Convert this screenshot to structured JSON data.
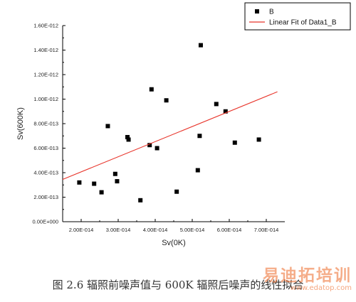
{
  "chart_data": {
    "type": "scatter",
    "title": "",
    "xlabel": "Sv(0K)",
    "ylabel": "Sv(600K)",
    "xlim": [
      1.5e-14,
      7.5e-14
    ],
    "ylim": [
      0,
      1.6e-12
    ],
    "x_ticks": [
      {
        "value": 2e-14,
        "label": "2.00E-014"
      },
      {
        "value": 3e-14,
        "label": "3.00E-014"
      },
      {
        "value": 4e-14,
        "label": "4.00E-014"
      },
      {
        "value": 5e-14,
        "label": "5.00E-014"
      },
      {
        "value": 6e-14,
        "label": "6.00E-014"
      },
      {
        "value": 7e-14,
        "label": "7.00E-014"
      }
    ],
    "y_ticks": [
      {
        "value": 0,
        "label": "0.00E+000"
      },
      {
        "value": 2e-13,
        "label": "2.00E-013"
      },
      {
        "value": 4e-13,
        "label": "4.00E-013"
      },
      {
        "value": 6e-13,
        "label": "6.00E-013"
      },
      {
        "value": 8e-13,
        "label": "8.00E-013"
      },
      {
        "value": 1e-12,
        "label": "1.00E-012"
      },
      {
        "value": 1.2e-12,
        "label": "1.20E-012"
      },
      {
        "value": 1.4e-12,
        "label": "1.40E-012"
      },
      {
        "value": 1.6e-12,
        "label": "1.60E-012"
      }
    ],
    "series": [
      {
        "name": "B",
        "type": "scatter",
        "color": "#000000",
        "points": [
          {
            "x": 1.95e-14,
            "y": 3.2e-13
          },
          {
            "x": 2.35e-14,
            "y": 3.1e-13
          },
          {
            "x": 2.55e-14,
            "y": 2.4e-13
          },
          {
            "x": 2.72e-14,
            "y": 7.8e-13
          },
          {
            "x": 2.92e-14,
            "y": 3.9e-13
          },
          {
            "x": 2.97e-14,
            "y": 3.3e-13
          },
          {
            "x": 3.25e-14,
            "y": 6.9e-13
          },
          {
            "x": 3.28e-14,
            "y": 6.7e-13
          },
          {
            "x": 3.6e-14,
            "y": 1.75e-13
          },
          {
            "x": 3.85e-14,
            "y": 6.25e-13
          },
          {
            "x": 3.9e-14,
            "y": 1.08e-12
          },
          {
            "x": 4.05e-14,
            "y": 6e-13
          },
          {
            "x": 4.3e-14,
            "y": 9.9e-13
          },
          {
            "x": 4.58e-14,
            "y": 2.45e-13
          },
          {
            "x": 5.15e-14,
            "y": 4.2e-13
          },
          {
            "x": 5.2e-14,
            "y": 7e-13
          },
          {
            "x": 5.23e-14,
            "y": 1.44e-12
          },
          {
            "x": 5.65e-14,
            "y": 9.6e-13
          },
          {
            "x": 5.9e-14,
            "y": 9e-13
          },
          {
            "x": 6.15e-14,
            "y": 6.45e-13
          },
          {
            "x": 6.8e-14,
            "y": 6.7e-13
          }
        ]
      },
      {
        "name": "Linear Fit of Data1_B",
        "type": "line",
        "color": "#e8352b",
        "points": [
          {
            "x": 1.5e-14,
            "y": 3.45e-13
          },
          {
            "x": 7.3e-14,
            "y": 1.06e-12
          }
        ]
      }
    ],
    "legend_position": "top-right",
    "grid": false
  },
  "caption": "图 2.6  辐照前噪声值与 600K 辐照后噪声的线性拟合",
  "watermark": {
    "text": "易迪拓培训",
    "url": "www.edatop.com",
    "color": "#ee6b2a"
  }
}
